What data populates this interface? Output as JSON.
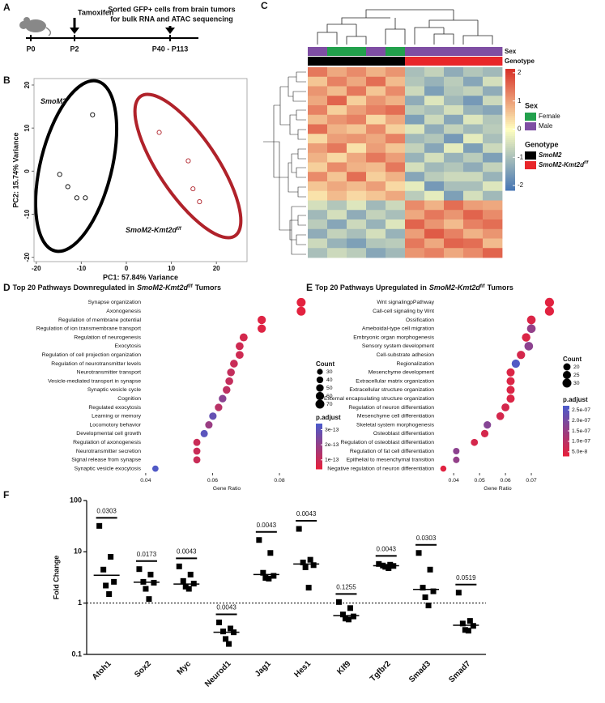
{
  "diagram": {
    "panel_label": "A",
    "event": "Tamoxifen",
    "note_lines": [
      "Sorted GFP+ cells from brain tumors",
      "for bulk RNA and ATAC sequencing"
    ],
    "timepoints": [
      "P0",
      "P2",
      "P40 - P113"
    ]
  },
  "chart_data": [
    {
      "type": "scatter",
      "panel_label": "B",
      "x_label": "PC1: 57.84% Variance",
      "y_label": "PC2: 15.74% Variance",
      "xlim": [
        -20.5,
        26.8
      ],
      "ylim": [
        -21,
        21.5
      ],
      "xticks": [
        -20,
        -10,
        0,
        10,
        20
      ],
      "yticks": [
        -20,
        -10,
        0,
        10,
        20
      ],
      "series": [
        {
          "name": "SmoM2",
          "color": "#000000",
          "x": [
            -7.5,
            -14.8,
            -13,
            -11,
            -9.1
          ],
          "y": [
            13.1,
            -0.75,
            -3.6,
            -6.2,
            -6.2
          ]
        },
        {
          "name": "SmoM2-Kmt2d",
          "superscript": "f/f",
          "color": "#b0222a",
          "x": [
            7.3,
            13.75,
            14.8,
            16.25
          ],
          "y": [
            9.0,
            2.4,
            -4.1,
            -7.1
          ]
        }
      ]
    },
    {
      "type": "heatmap",
      "panel_label": "C",
      "zlim": [
        -2.17,
        2.14
      ],
      "zticks": [
        2,
        1,
        0,
        -1,
        -2
      ],
      "colors": [
        "#4575b4",
        "#ffffbf",
        "#d73027"
      ],
      "annotations": [
        {
          "title": "Sex",
          "levels": [
            {
              "name": "Female",
              "color": "#22a04c"
            },
            {
              "name": "Male",
              "color": "#7e4ea3"
            }
          ],
          "values": [
            1,
            0,
            0,
            1,
            0,
            1,
            1,
            1,
            1,
            1
          ]
        },
        {
          "title": "Genotype",
          "levels": [
            {
              "name": "SmoM2",
              "color": "#000000"
            },
            {
              "name": "SmoM2-Kmt2d",
              "superscript": "f/f",
              "color": "#e8262a"
            }
          ],
          "values": [
            0,
            0,
            0,
            0,
            0,
            1,
            1,
            1,
            1,
            1
          ]
        }
      ],
      "z": [
        [
          1.4,
          0.9,
          1.2,
          0.8,
          1.1,
          -1.0,
          -0.7,
          -1.3,
          -0.9,
          -1.1
        ],
        [
          0.6,
          1.3,
          0.9,
          1.5,
          0.7,
          -0.9,
          -1.2,
          -0.8,
          -1.4,
          -0.5
        ],
        [
          1.1,
          0.7,
          1.4,
          0.6,
          1.2,
          -0.6,
          -1.5,
          -0.9,
          -0.7,
          -1.3
        ],
        [
          0.9,
          1.6,
          0.5,
          1.1,
          0.8,
          -1.3,
          -0.4,
          -1.1,
          -1.6,
          -0.6
        ],
        [
          1.3,
          0.5,
          1.0,
          1.3,
          1.5,
          -0.8,
          -1.0,
          -0.5,
          -1.2,
          -1.4
        ],
        [
          0.7,
          1.1,
          1.3,
          0.4,
          0.9,
          -1.5,
          -0.6,
          -1.4,
          -0.4,
          -0.9
        ],
        [
          1.5,
          0.8,
          0.6,
          1.2,
          0.5,
          -0.4,
          -1.3,
          -0.7,
          -1.1,
          -0.8
        ],
        [
          0.4,
          1.0,
          1.1,
          0.9,
          1.3,
          -1.1,
          -0.9,
          -1.6,
          -0.3,
          -1.0
        ],
        [
          1.0,
          1.4,
          0.3,
          1.0,
          0.6,
          -0.7,
          -1.4,
          -0.3,
          -1.5,
          -0.6
        ],
        [
          0.8,
          0.4,
          0.9,
          1.4,
          1.0,
          -1.2,
          -0.5,
          -1.2,
          -0.8,
          -1.5
        ],
        [
          0.5,
          1.2,
          0.8,
          0.7,
          1.4,
          -0.5,
          -1.1,
          -0.9,
          -1.3,
          -0.7
        ],
        [
          1.2,
          0.6,
          1.5,
          0.5,
          0.8,
          -1.4,
          -0.8,
          -0.6,
          -0.6,
          -1.2
        ],
        [
          0.6,
          0.9,
          0.7,
          1.0,
          0.4,
          -0.3,
          -1.6,
          -1.0,
          -1.0,
          -0.4
        ],
        [
          0.3,
          0.7,
          0.4,
          0.6,
          0.9,
          -0.8,
          -0.3,
          -1.5,
          -0.5,
          -1.1
        ],
        [
          -0.5,
          -0.9,
          -0.4,
          -1.1,
          -0.6,
          1.2,
          0.8,
          1.5,
          1.0,
          0.9
        ],
        [
          -1.1,
          -0.5,
          -1.3,
          -0.7,
          -1.0,
          0.9,
          1.4,
          1.1,
          1.6,
          1.2
        ],
        [
          -0.8,
          -1.4,
          -0.6,
          -1.2,
          -0.4,
          1.6,
          1.1,
          0.7,
          1.3,
          1.5
        ],
        [
          -1.3,
          -0.7,
          -1.0,
          -0.5,
          -1.2,
          1.0,
          1.7,
          1.3,
          0.8,
          1.1
        ],
        [
          -0.6,
          -1.2,
          -1.5,
          -0.9,
          -0.8,
          1.4,
          0.9,
          1.6,
          1.5,
          0.7
        ],
        [
          -1.0,
          -0.6,
          -0.8,
          -1.4,
          -1.1,
          1.1,
          1.3,
          0.9,
          1.2,
          1.6
        ]
      ]
    },
    {
      "type": "dotplot",
      "panel_label": "D",
      "title": "Top 20 Pathways Downregulated in",
      "title_italic": "SmoM2-Kmt2d",
      "title_superscript": "f/f",
      "title_end": "Tumors",
      "x_label": "Gene Ratio",
      "xlim": [
        0.0393,
        0.0892
      ],
      "xticks": [
        0.04,
        0.06,
        0.08
      ],
      "categories": [
        "Synapse organization",
        "Axonogenesis",
        "Regulation of membrane potential",
        "Regulation of ion transmembrane transport",
        "Regulation of neurogenesis",
        "Exocytosis",
        "Regulation of cell projection organization",
        "Regulation of neurotransmitter levels",
        "Neurotransmitter transport",
        "Vesicle-mediated transport in synapse",
        "Synaptic vesicle cycle",
        "Cognition",
        "Regulated exocytosis",
        "Learning or memory",
        "Locomotory behavior",
        "Developmental cell growth",
        "Regulation of axonogenesis",
        "Neurotransmitter secretion",
        "Signal release from synapse",
        "Synaptic vesicle exocytosis"
      ],
      "values": [
        0.0865,
        0.0865,
        0.0747,
        0.0747,
        0.0693,
        0.0681,
        0.0681,
        0.0664,
        0.0655,
        0.065,
        0.0642,
        0.063,
        0.0618,
        0.0601,
        0.0589,
        0.0575,
        0.0553,
        0.0553,
        0.0553,
        0.0429
      ],
      "counts": [
        70,
        70,
        61,
        61,
        56,
        55,
        55,
        54,
        53,
        53,
        52,
        51,
        50,
        49,
        48,
        47,
        45,
        45,
        45,
        35
      ],
      "p_adjust": [
        5e-14,
        5e-14,
        6e-14,
        6e-14,
        8e-14,
        9e-14,
        9e-14,
        1e-13,
        1.1e-13,
        1.1e-13,
        1.2e-13,
        2.2e-13,
        1.3e-13,
        2.9e-13,
        1.9e-13,
        3.1e-13,
        1e-13,
        1e-13,
        1e-13,
        3.3e-13
      ],
      "size_title": "Count",
      "size_ticks": [
        30,
        40,
        50,
        60,
        70
      ],
      "color_title": "p.adjust",
      "color_lim": [
        4e-14,
        3.4e-13
      ],
      "color_range": [
        "#e8203a",
        "#4b5bcb"
      ],
      "color_ticks": [
        3e-13,
        2e-13,
        1e-13
      ]
    },
    {
      "type": "dotplot",
      "panel_label": "E",
      "title": "Top 20 Pathways Upregulated in",
      "title_italic": "SmoM2-Kmt2d",
      "title_superscript": "f/f",
      "title_end": "Tumors",
      "x_label": "Gene Ratio",
      "xlim": [
        0.034,
        0.08
      ],
      "xticks": [
        0.04,
        0.05,
        0.06,
        0.07
      ],
      "categories": [
        "Wnt signalingpPathway",
        "Call-cell signaling by Wnt",
        "Ossification",
        "Ameboidal-type cell migration",
        "Embryonic organ morphogenesis",
        "Sensory system development",
        "Cell-substrate adhesion",
        "Regionalization",
        "Mesenchyme development",
        "Extracellular matrix organization",
        "Extracellular structure organization",
        "External encapsulating structure organization",
        "Regulation of neuron differentiation",
        "Mesenchyme cell differentiation",
        "Skeletal system morphogenesis",
        "Osteoblast differentiation",
        "Regulation of osteoblast differentiation",
        "Regulation of fat cell differentiation",
        "Epithelial to mesenchymal transition",
        "Negative regulation of neuron differentiation"
      ],
      "values": [
        0.077,
        0.077,
        0.07,
        0.07,
        0.068,
        0.069,
        0.066,
        0.064,
        0.062,
        0.062,
        0.062,
        0.062,
        0.06,
        0.058,
        0.053,
        0.052,
        0.048,
        0.041,
        0.041,
        0.036
      ],
      "counts": [
        31,
        31,
        28,
        28,
        27,
        28,
        26,
        26,
        25,
        25,
        25,
        25,
        24,
        23,
        21,
        21,
        19,
        16,
        16,
        14
      ],
      "p_adjust": [
        4e-08,
        4e-08,
        5e-08,
        1.6e-07,
        5e-08,
        1.7e-07,
        6e-08,
        2.6e-07,
        5e-08,
        5e-08,
        5e-08,
        5e-08,
        6e-08,
        6e-08,
        1.8e-07,
        6e-08,
        6e-08,
        1.7e-07,
        1.6e-07,
        4e-08
      ],
      "size_title": "Count",
      "size_ticks": [
        20,
        25,
        30
      ],
      "color_title": "p.adjust",
      "color_lim": [
        3e-08,
        2.7e-07
      ],
      "color_range": [
        "#e8203a",
        "#4b5bcb"
      ],
      "color_ticks": [
        {
          "value": 2.5e-07,
          "label": "2.5e-07"
        },
        {
          "value": 2e-07,
          "label": "2.0e-07"
        },
        {
          "value": 1.5e-07,
          "label": "1.5e-07"
        },
        {
          "value": 1e-07,
          "label": "1.0e-07"
        },
        {
          "value": 5e-08,
          "label": "5.0e-8"
        }
      ]
    },
    {
      "type": "strip",
      "panel_label": "F",
      "y_label": "Fold Change",
      "log_y": true,
      "ylim": [
        0.1,
        100
      ],
      "yticks": [
        0.1,
        1,
        10,
        100
      ],
      "hline": 1,
      "categories": [
        "Atoh1",
        "Sox2",
        "Myc",
        "Neurod1",
        "Jag1",
        "Hes1",
        "Klf9",
        "Tgfbr2",
        "Smad3",
        "Smad7"
      ],
      "points": [
        [
          32,
          8,
          4.5,
          2.6,
          2.2,
          1.5
        ],
        [
          4.6,
          3.6,
          2.6,
          2.5,
          1.9,
          1.2
        ],
        [
          5.2,
          3.6,
          2.7,
          2.4,
          2.1,
          1.9
        ],
        [
          0.42,
          0.32,
          0.28,
          0.27,
          0.2,
          0.16
        ],
        [
          17,
          9.5,
          3.9,
          3.4,
          3.1,
          3.0
        ],
        [
          28,
          7.0,
          6.2,
          5.5,
          5.0,
          2.0
        ],
        [
          1.05,
          0.8,
          0.6,
          0.55,
          0.5,
          0.48
        ],
        [
          5.8,
          5.6,
          5.4,
          5.3,
          5.1,
          4.8
        ],
        [
          9.5,
          4.5,
          2.0,
          1.7,
          1.3,
          0.9
        ],
        [
          1.6,
          0.45,
          0.4,
          0.36,
          0.3,
          0.29
        ]
      ],
      "medians": [
        3.5,
        2.55,
        2.35,
        0.27,
        3.6,
        5.8,
        0.57,
        5.35,
        1.85,
        0.37
      ],
      "p_values": [
        0.0303,
        0.0173,
        0.0043,
        0.0043,
        0.0043,
        0.0043,
        0.1255,
        0.0043,
        0.0303,
        0.0519
      ]
    }
  ]
}
